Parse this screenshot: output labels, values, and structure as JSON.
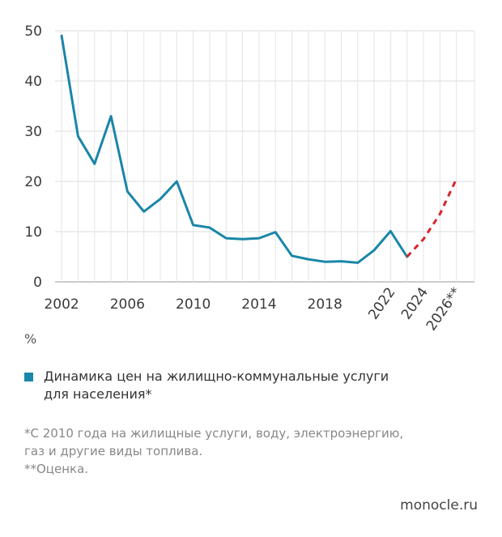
{
  "chart_data": {
    "type": "line",
    "ylim": [
      0,
      50
    ],
    "y_ticks": [
      "0",
      "10",
      "20",
      "30",
      "40",
      "50"
    ],
    "x_ticks": [
      "2002",
      "2006",
      "2010",
      "2014",
      "2018",
      "2022",
      "2024",
      "2026**"
    ],
    "unit_label": "%",
    "series": [
      {
        "name": "Динамика цен на жилищно-коммунальные услуги для населения*",
        "color": "#1a86a8",
        "style": "solid",
        "x": [
          2002,
          2003,
          2004,
          2005,
          2006,
          2007,
          2008,
          2009,
          2010,
          2011,
          2012,
          2013,
          2014,
          2015,
          2016,
          2017,
          2018,
          2019,
          2020,
          2021,
          2022,
          2023
        ],
        "values": [
          49,
          29,
          23.5,
          33,
          18,
          14,
          16.5,
          20,
          11.3,
          10.8,
          8.7,
          8.5,
          8.7,
          9.9,
          5.2,
          4.5,
          4.0,
          4.1,
          3.8,
          6.3,
          10.1,
          5.0
        ]
      },
      {
        "name": "",
        "color": "#d7252c",
        "style": "dashed",
        "x": [
          2023,
          2024,
          2025,
          2026
        ],
        "values": [
          5.0,
          8.5,
          13.5,
          20.5
        ]
      }
    ],
    "grid": true
  },
  "legend": {
    "swatch_color": "#1a86a8",
    "line1": "Динамика цен на жилищно-коммунальные услуги",
    "line2": "для населения*"
  },
  "notes": {
    "line1": "*С 2010 года на жилищные услуги, воду, электроэнергию,",
    "line2": "газ и другие виды топлива.",
    "line3": "**Оценка."
  },
  "source": "monocle.ru"
}
